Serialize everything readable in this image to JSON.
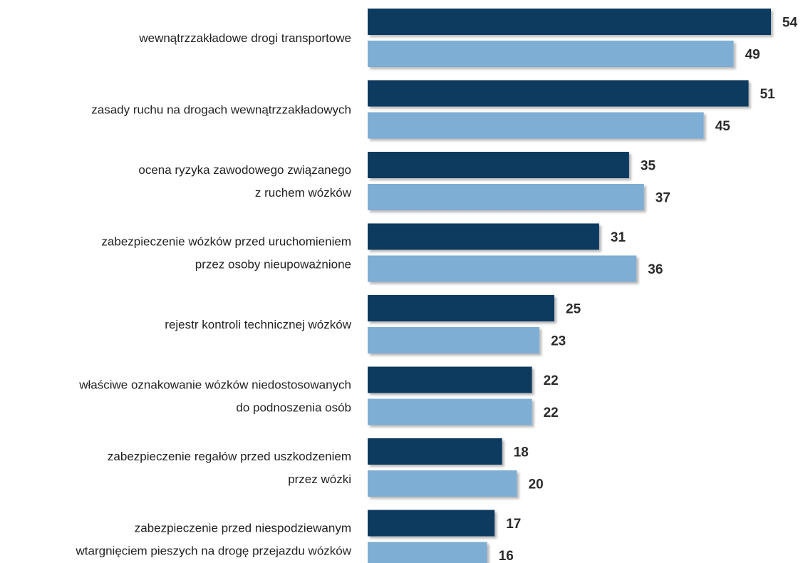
{
  "chart_data": {
    "type": "bar",
    "orientation": "horizontal",
    "categories": [
      [
        "wewnątrzzakładowe drogi transportowe"
      ],
      [
        "zasady ruchu na drogach wewnątrzzakładowych"
      ],
      [
        "ocena ryzyka zawodowego związanego",
        "z ruchem wózków"
      ],
      [
        "zabezpieczenie wózków przed uruchomieniem",
        "przez osoby nieupoważnione"
      ],
      [
        "rejestr kontroli technicznej wózków"
      ],
      [
        "właściwe oznakowanie wózków niedostosowanych",
        "do podnoszenia osób"
      ],
      [
        "zabezpieczenie regałów przed uszkodzeniem",
        "przez wózki"
      ],
      [
        "zabezpieczenie przed niespodziewanym",
        "wtargnięciem pieszych na drogę przejazdu wózków"
      ]
    ],
    "series": [
      {
        "values": [
          54,
          51,
          35,
          31,
          25,
          22,
          18,
          17
        ],
        "color": "#0a3a61"
      },
      {
        "values": [
          49,
          45,
          37,
          36,
          23,
          22,
          20,
          16
        ],
        "color": "#7eaed4"
      }
    ],
    "xlim": [
      0,
      54
    ],
    "grid": false,
    "legend": "none",
    "value_labels": true
  }
}
